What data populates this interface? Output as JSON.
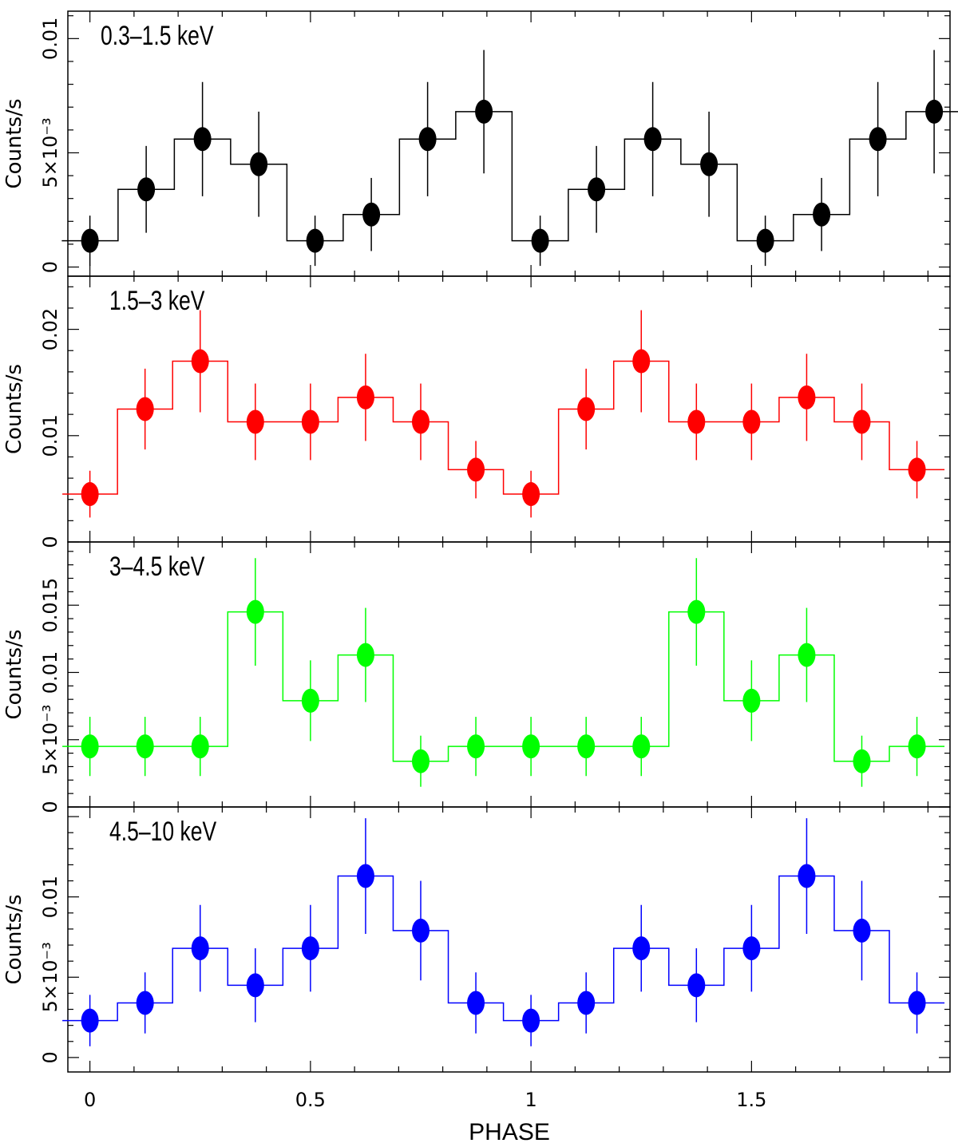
{
  "chart_data": {
    "type": "step-errorbar",
    "xlabel": "PHASE",
    "xlim": [
      -0.05,
      1.95
    ],
    "x_ticks": [
      0,
      0.5,
      1,
      1.5
    ],
    "x_tick_labels": [
      "0",
      "0.5",
      "1",
      "1.5"
    ],
    "panels": [
      {
        "label": "0.3–1.5 keV",
        "color": "#000000",
        "ylabel": "Counts/s",
        "ylim": [
          -0.0004,
          0.0112
        ],
        "y_ticks": [
          0,
          0.005,
          0.01
        ],
        "y_tick_labels": [
          "0",
          "5×10⁻³",
          "0.01"
        ],
        "bin_width": 0.1276,
        "x": [
          0,
          0.1276,
          0.2552,
          0.3828,
          0.5104,
          0.638,
          0.7656,
          0.8932,
          1.0208,
          1.1484,
          1.276,
          1.4036,
          1.5312,
          1.6588,
          1.7864,
          1.914
        ],
        "values": [
          0.00115,
          0.0034,
          0.0056,
          0.0045,
          0.00115,
          0.0023,
          0.0056,
          0.0068,
          0.00115,
          0.0034,
          0.0056,
          0.0045,
          0.00115,
          0.0023,
          0.0056,
          0.0068
        ],
        "errors": [
          0.0011,
          0.0019,
          0.0025,
          0.0023,
          0.0011,
          0.0016,
          0.0025,
          0.0027,
          0.0011,
          0.0019,
          0.0025,
          0.0023,
          0.0011,
          0.0016,
          0.0025,
          0.0027
        ]
      },
      {
        "label": "1.5–3 keV",
        "color": "#ff0000",
        "ylabel": "Counts/s",
        "ylim": [
          0,
          0.025
        ],
        "y_ticks": [
          0,
          0.01,
          0.02
        ],
        "y_tick_labels": [
          "0",
          "0.01",
          "0.02"
        ],
        "bin_width": 0.125,
        "x": [
          0,
          0.125,
          0.25,
          0.375,
          0.5,
          0.625,
          0.75,
          0.875,
          1.0,
          1.125,
          1.25,
          1.375,
          1.5,
          1.625,
          1.75,
          1.875
        ],
        "values": [
          0.0045,
          0.0125,
          0.017,
          0.0113,
          0.0113,
          0.0136,
          0.0113,
          0.0068,
          0.0045,
          0.0125,
          0.017,
          0.0113,
          0.0113,
          0.0136,
          0.0113,
          0.0068
        ],
        "errors": [
          0.0022,
          0.0038,
          0.0048,
          0.0036,
          0.0036,
          0.0041,
          0.0036,
          0.0027,
          0.0022,
          0.0038,
          0.0048,
          0.0036,
          0.0036,
          0.0041,
          0.0036,
          0.0027
        ]
      },
      {
        "label": "3–4.5 keV",
        "color": "#00ff00",
        "ylabel": "Counts/s",
        "ylim": [
          0,
          0.0197
        ],
        "y_ticks": [
          0,
          0.005,
          0.01,
          0.015
        ],
        "y_tick_labels": [
          "0",
          "5×10⁻³",
          "0.01",
          "0.015"
        ],
        "bin_width": 0.125,
        "x": [
          0,
          0.125,
          0.25,
          0.375,
          0.5,
          0.625,
          0.75,
          0.875,
          1.0,
          1.125,
          1.25,
          1.375,
          1.5,
          1.625,
          1.75,
          1.875
        ],
        "values": [
          0.0045,
          0.0045,
          0.0045,
          0.0145,
          0.0079,
          0.0113,
          0.0034,
          0.0045,
          0.0045,
          0.0045,
          0.0045,
          0.0145,
          0.0079,
          0.0113,
          0.0034,
          0.0045
        ],
        "errors": [
          0.0022,
          0.0022,
          0.0022,
          0.004,
          0.003,
          0.0035,
          0.0019,
          0.0022,
          0.0022,
          0.0022,
          0.0022,
          0.004,
          0.003,
          0.0035,
          0.0019,
          0.0022
        ]
      },
      {
        "label": "4.5–10 keV",
        "color": "#0000ff",
        "ylabel": "Counts/s",
        "ylim": [
          -0.0009,
          0.0156
        ],
        "y_ticks": [
          0,
          0.005,
          0.01
        ],
        "y_tick_labels": [
          "0",
          "5×10⁻³",
          "0.01"
        ],
        "bin_width": 0.125,
        "x": [
          0,
          0.125,
          0.25,
          0.375,
          0.5,
          0.625,
          0.75,
          0.875,
          1.0,
          1.125,
          1.25,
          1.375,
          1.5,
          1.625,
          1.75,
          1.875
        ],
        "values": [
          0.0023,
          0.0034,
          0.0068,
          0.0045,
          0.0068,
          0.0113,
          0.0079,
          0.0034,
          0.0023,
          0.0034,
          0.0068,
          0.0045,
          0.0068,
          0.0113,
          0.0079,
          0.0034
        ],
        "errors": [
          0.0016,
          0.0019,
          0.0027,
          0.0023,
          0.0027,
          0.0036,
          0.0031,
          0.0019,
          0.0016,
          0.0019,
          0.0027,
          0.0023,
          0.0027,
          0.0036,
          0.0031,
          0.0019
        ]
      }
    ]
  }
}
